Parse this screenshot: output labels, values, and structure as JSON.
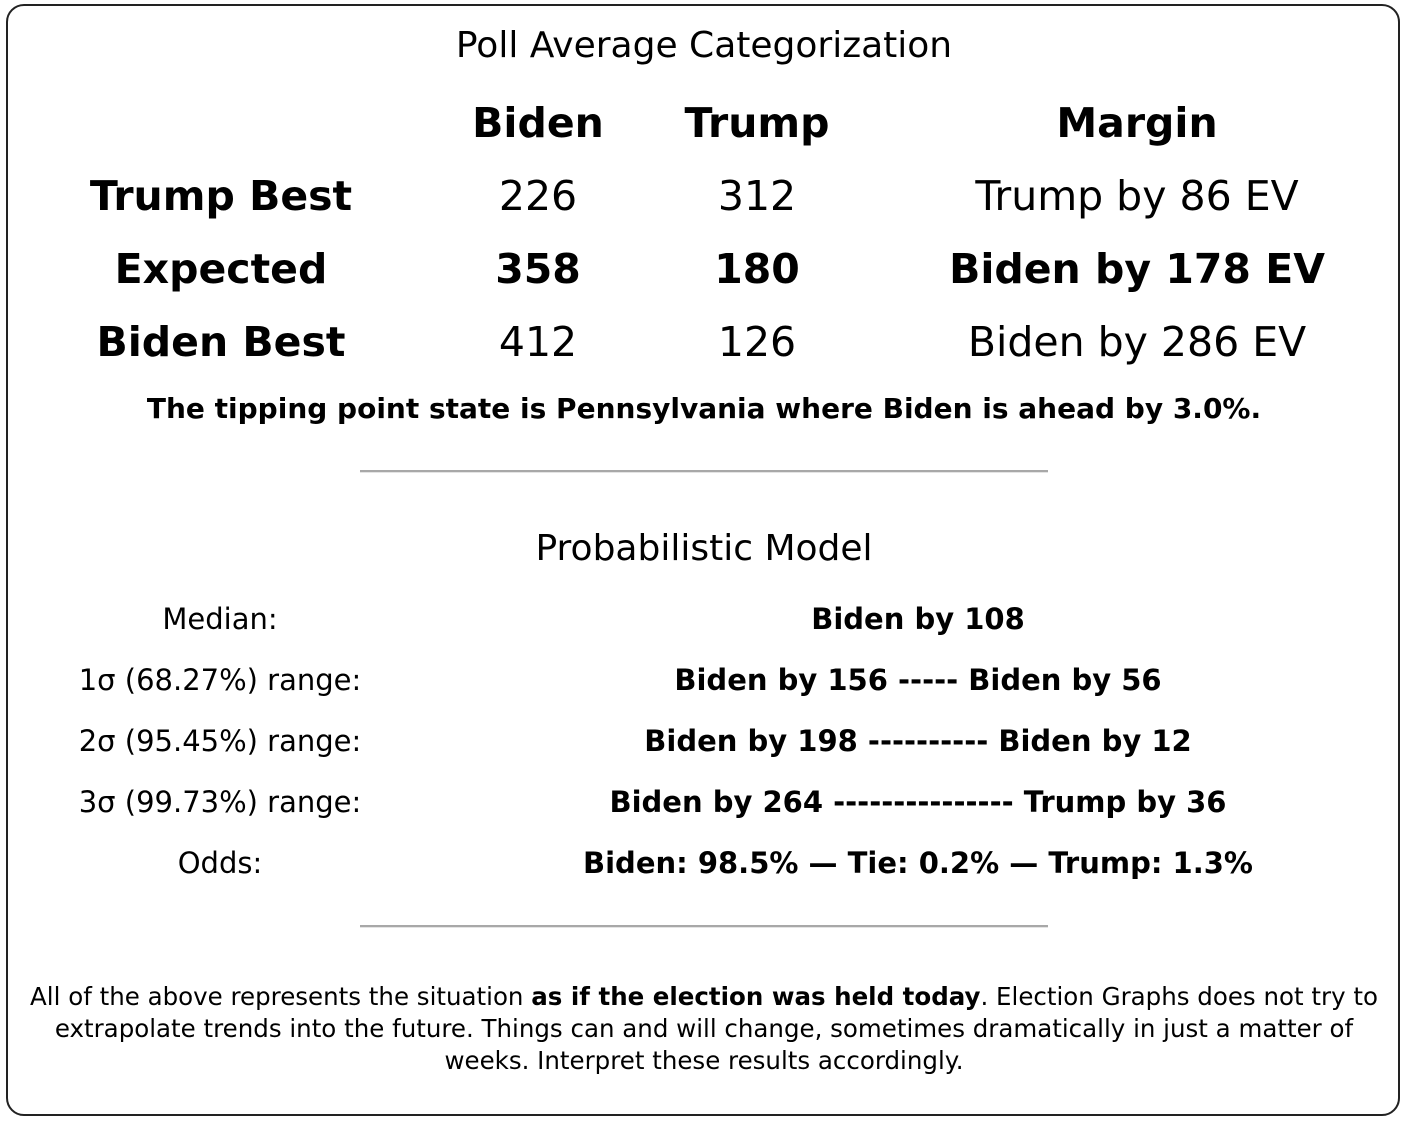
{
  "poll_average": {
    "title": "Poll Average Categorization",
    "columns": [
      "Biden",
      "Trump",
      "Margin"
    ],
    "rows": [
      {
        "label": "Trump Best",
        "biden": "226",
        "trump": "312",
        "margin": "Trump by 86 EV"
      },
      {
        "label": "Expected",
        "biden": "358",
        "trump": "180",
        "margin": "Biden by 178 EV"
      },
      {
        "label": "Biden Best",
        "biden": "412",
        "trump": "126",
        "margin": "Biden by 286 EV"
      }
    ],
    "tipping_point": "The tipping point state is Pennsylvania where Biden is ahead by 3.0%."
  },
  "probabilistic_model": {
    "title": "Probabilistic Model",
    "rows": [
      {
        "label": "Median:",
        "value": "Biden by 108"
      },
      {
        "label": "1σ (68.27%) range:",
        "value": "Biden by 156 ----- Biden by 56"
      },
      {
        "label": "2σ (95.45%) range:",
        "value": "Biden by 198 ---------- Biden by 12"
      },
      {
        "label": "3σ (99.73%) range:",
        "value": "Biden by 264 --------------- Trump by 36"
      },
      {
        "label": "Odds:",
        "value": "Biden: 98.5% — Tie: 0.2% — Trump: 1.3%"
      }
    ]
  },
  "footer": {
    "before": "All of the above represents the situation ",
    "bold": "as if the election was held today",
    "after": ". Election Graphs does not try to extrapolate trends into the future. Things can and will change, sometimes dramatically in just a matter of weeks. Interpret these results accordingly."
  }
}
